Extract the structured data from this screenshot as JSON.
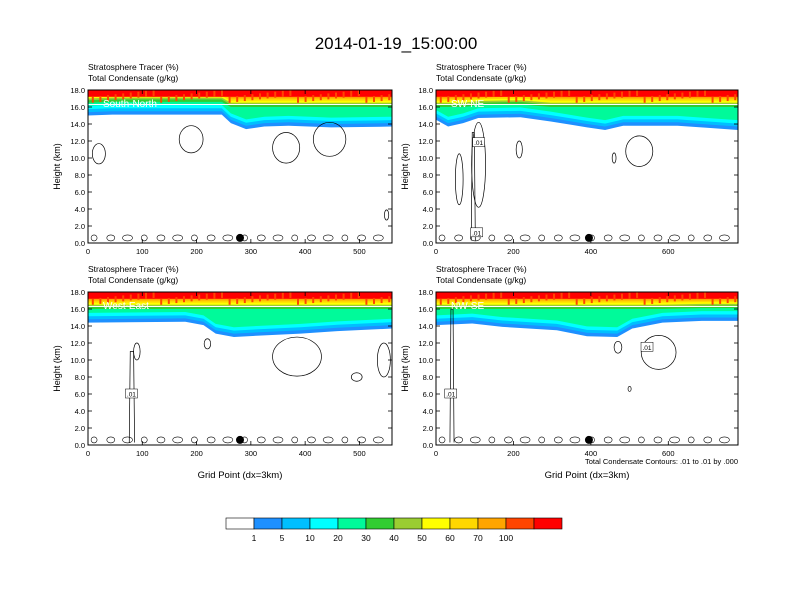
{
  "title": "2014-01-19_15:00:00",
  "contour_note": "Total Condensate Contours: .01 to .01 by .000",
  "contour_label": ".01",
  "colorbar": {
    "levels": [
      "1",
      "5",
      "10",
      "20",
      "30",
      "40",
      "50",
      "60",
      "70",
      "100"
    ],
    "colors": [
      "#ffffff",
      "#1e90ff",
      "#00bfff",
      "#00ffff",
      "#00fa9a",
      "#32cd32",
      "#9acd32",
      "#ffff00",
      "#ffd700",
      "#ffa500",
      "#ff4500",
      "#ff0000"
    ]
  },
  "chart_data": [
    {
      "type": "heatmap",
      "panel_label": "South-North",
      "series_left": "Stratosphere Tracer",
      "series_left_unit": "(%)",
      "series_right": "Total Condensate",
      "series_right_unit": "(g/kg)",
      "ylabel": "Height (km)",
      "xlabel": "",
      "xlim": [
        0,
        560
      ],
      "ylim": [
        0,
        18
      ],
      "xticks": [
        "0",
        "100",
        "200",
        "300",
        "400",
        "500"
      ],
      "yticks": [
        "0.0",
        "2.0",
        "4.0",
        "6.0",
        "8.0",
        "10.0",
        "12.0",
        "14.0",
        "16.0",
        "18.0"
      ],
      "marker_x": 280
    },
    {
      "type": "heatmap",
      "panel_label": "SW-NE",
      "series_left": "Stratosphere Tracer",
      "series_left_unit": "(%)",
      "series_right": "Total Condensate",
      "series_right_unit": "(g/kg)",
      "ylabel": "Height (km)",
      "xlabel": "",
      "xlim": [
        0,
        780
      ],
      "ylim": [
        0,
        18
      ],
      "xticks": [
        "0",
        "200",
        "400",
        "600"
      ],
      "yticks": [
        "0.0",
        "2.0",
        "4.0",
        "6.0",
        "8.0",
        "10.0",
        "12.0",
        "14.0",
        "16.0",
        "18.0"
      ],
      "marker_x": 395
    },
    {
      "type": "heatmap",
      "panel_label": "West-East",
      "series_left": "Stratosphere Tracer",
      "series_left_unit": "(%)",
      "series_right": "Total Condensate",
      "series_right_unit": "(g/kg)",
      "ylabel": "Height (km)",
      "xlabel": "Grid Point (dx=3km)",
      "xlim": [
        0,
        560
      ],
      "ylim": [
        0,
        18
      ],
      "xticks": [
        "0",
        "100",
        "200",
        "300",
        "400",
        "500"
      ],
      "yticks": [
        "0.0",
        "2.0",
        "4.0",
        "6.0",
        "8.0",
        "10.0",
        "12.0",
        "14.0",
        "16.0",
        "18.0"
      ],
      "marker_x": 280
    },
    {
      "type": "heatmap",
      "panel_label": "NW-SE",
      "series_left": "Stratosphere Tracer",
      "series_left_unit": "(%)",
      "series_right": "Total Condensate",
      "series_right_unit": "(g/kg)",
      "ylabel": "Height (km)",
      "xlabel": "Grid Point (dx=3km)",
      "xlim": [
        0,
        780
      ],
      "ylim": [
        0,
        18
      ],
      "xticks": [
        "0",
        "200",
        "400",
        "600"
      ],
      "yticks": [
        "0.0",
        "2.0",
        "4.0",
        "6.0",
        "8.0",
        "10.0",
        "12.0",
        "14.0",
        "16.0",
        "18.0"
      ],
      "marker_x": 395
    }
  ]
}
